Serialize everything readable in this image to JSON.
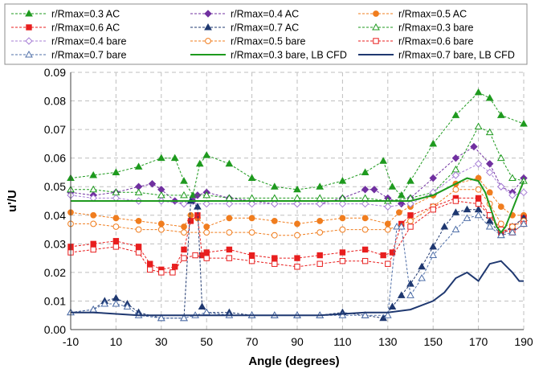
{
  "chart_data": {
    "type": "line",
    "title": "",
    "xlabel": "Angle (degrees)",
    "ylabel": "u'/U",
    "xlim": [
      -10,
      190
    ],
    "ylim": [
      0,
      0.09
    ],
    "xticks": [
      -10,
      10,
      30,
      50,
      70,
      90,
      110,
      130,
      150,
      170,
      190
    ],
    "yticks": [
      0.0,
      0.01,
      0.02,
      0.03,
      0.04,
      0.05,
      0.06,
      0.07,
      0.08,
      0.09
    ],
    "ytick_labels": [
      "0.00",
      "0.01",
      "0.02",
      "0.03",
      "0.04",
      "0.05",
      "0.06",
      "0.07",
      "0.08",
      "0.09"
    ],
    "grid": true,
    "legend_position": "top",
    "series": [
      {
        "name": "r/Rmax=0.3 AC",
        "color": "#1e9a1e",
        "marker": "triangle",
        "filled": true,
        "dashed": true,
        "x": [
          -10,
          0,
          10,
          20,
          30,
          36,
          40,
          44,
          47,
          50,
          60,
          70,
          80,
          90,
          100,
          110,
          120,
          128,
          132,
          136,
          140,
          150,
          160,
          170,
          175,
          180,
          190
        ],
        "y": [
          0.053,
          0.054,
          0.055,
          0.057,
          0.06,
          0.06,
          0.052,
          0.047,
          0.058,
          0.061,
          0.058,
          0.053,
          0.05,
          0.049,
          0.05,
          0.052,
          0.055,
          0.059,
          0.05,
          0.047,
          0.052,
          0.065,
          0.075,
          0.083,
          0.081,
          0.075,
          0.072
        ]
      },
      {
        "name": "r/Rmax=0.4 AC",
        "color": "#7030a0",
        "marker": "diamond",
        "filled": true,
        "dashed": true,
        "x": [
          -10,
          0,
          10,
          20,
          26,
          30,
          36,
          40,
          44,
          46,
          50,
          60,
          70,
          80,
          90,
          100,
          110,
          120,
          124,
          130,
          136,
          140,
          150,
          160,
          168,
          175,
          180,
          185,
          190
        ],
        "y": [
          0.048,
          0.047,
          0.048,
          0.05,
          0.051,
          0.049,
          0.045,
          0.044,
          0.045,
          0.047,
          0.048,
          0.046,
          0.045,
          0.044,
          0.044,
          0.044,
          0.046,
          0.049,
          0.049,
          0.046,
          0.044,
          0.046,
          0.053,
          0.06,
          0.064,
          0.058,
          0.05,
          0.048,
          0.053
        ]
      },
      {
        "name": "r/Rmax=0.5 AC",
        "color": "#f07d1e",
        "marker": "circle",
        "filled": true,
        "dashed": true,
        "x": [
          -10,
          0,
          10,
          20,
          30,
          40,
          43,
          46,
          50,
          60,
          70,
          80,
          90,
          100,
          110,
          120,
          130,
          135,
          140,
          150,
          160,
          170,
          175,
          180,
          185,
          190
        ],
        "y": [
          0.041,
          0.04,
          0.039,
          0.038,
          0.037,
          0.036,
          0.04,
          0.039,
          0.036,
          0.039,
          0.039,
          0.038,
          0.037,
          0.038,
          0.039,
          0.039,
          0.037,
          0.041,
          0.043,
          0.047,
          0.051,
          0.053,
          0.048,
          0.043,
          0.04,
          0.04
        ]
      },
      {
        "name": "r/Rmax=0.6 AC",
        "color": "#e81e1e",
        "marker": "square",
        "filled": true,
        "dashed": true,
        "x": [
          -10,
          0,
          10,
          20,
          25,
          30,
          36,
          40,
          43,
          46,
          48,
          50,
          60,
          70,
          80,
          90,
          100,
          110,
          120,
          128,
          132,
          136,
          140,
          150,
          160,
          170,
          175,
          180,
          185,
          190
        ],
        "y": [
          0.029,
          0.03,
          0.031,
          0.029,
          0.023,
          0.021,
          0.022,
          0.028,
          0.038,
          0.04,
          0.026,
          0.027,
          0.028,
          0.026,
          0.025,
          0.025,
          0.026,
          0.027,
          0.028,
          0.026,
          0.027,
          0.037,
          0.04,
          0.043,
          0.046,
          0.046,
          0.04,
          0.034,
          0.036,
          0.039
        ]
      },
      {
        "name": "r/Rmax=0.7 AC",
        "color": "#1f3870",
        "marker": "triangle",
        "filled": true,
        "dashed": true,
        "x": [
          -10,
          0,
          5,
          10,
          15,
          20,
          30,
          40,
          43,
          46,
          48,
          50,
          60,
          70,
          80,
          90,
          100,
          110,
          120,
          128,
          132,
          136,
          140,
          145,
          150,
          155,
          160,
          165,
          170,
          175,
          180,
          185,
          190
        ],
        "y": [
          0.006,
          0.007,
          0.01,
          0.011,
          0.009,
          0.006,
          0.004,
          0.004,
          0.045,
          0.043,
          0.008,
          0.006,
          0.006,
          0.005,
          0.005,
          0.005,
          0.005,
          0.006,
          0.005,
          0.004,
          0.008,
          0.012,
          0.016,
          0.022,
          0.029,
          0.036,
          0.041,
          0.042,
          0.042,
          0.038,
          0.033,
          0.036,
          0.039
        ]
      },
      {
        "name": "r/Rmax=0.3 bare",
        "color": "#1e9a1e",
        "marker": "triangle",
        "filled": false,
        "dashed": true,
        "x": [
          -10,
          0,
          10,
          20,
          30,
          40,
          50,
          60,
          70,
          80,
          90,
          100,
          110,
          120,
          130,
          140,
          150,
          160,
          170,
          175,
          180,
          185,
          190
        ],
        "y": [
          0.049,
          0.049,
          0.048,
          0.048,
          0.047,
          0.047,
          0.047,
          0.046,
          0.046,
          0.046,
          0.046,
          0.046,
          0.046,
          0.046,
          0.045,
          0.046,
          0.048,
          0.056,
          0.071,
          0.069,
          0.06,
          0.053,
          0.052
        ]
      },
      {
        "name": "r/Rmax=0.4 bare",
        "color": "#a77fd6",
        "marker": "diamond",
        "filled": false,
        "dashed": true,
        "x": [
          -10,
          0,
          10,
          20,
          30,
          40,
          50,
          60,
          70,
          80,
          90,
          100,
          110,
          120,
          130,
          140,
          150,
          160,
          170,
          175,
          180,
          185,
          190
        ],
        "y": [
          0.047,
          0.046,
          0.046,
          0.045,
          0.045,
          0.044,
          0.044,
          0.044,
          0.044,
          0.044,
          0.044,
          0.044,
          0.044,
          0.044,
          0.043,
          0.044,
          0.048,
          0.054,
          0.058,
          0.055,
          0.05,
          0.047,
          0.048
        ]
      },
      {
        "name": "r/Rmax=0.5 bare",
        "color": "#f07d1e",
        "marker": "circle",
        "filled": false,
        "dashed": true,
        "x": [
          -10,
          0,
          10,
          20,
          30,
          40,
          50,
          60,
          70,
          80,
          90,
          100,
          110,
          120,
          130,
          140,
          150,
          160,
          170,
          175,
          180,
          185,
          190
        ],
        "y": [
          0.037,
          0.037,
          0.036,
          0.035,
          0.035,
          0.034,
          0.034,
          0.034,
          0.034,
          0.033,
          0.033,
          0.034,
          0.035,
          0.035,
          0.035,
          0.038,
          0.043,
          0.049,
          0.049,
          0.044,
          0.037,
          0.036,
          0.038
        ]
      },
      {
        "name": "r/Rmax=0.6 bare",
        "color": "#e81e1e",
        "marker": "square",
        "filled": false,
        "dashed": true,
        "x": [
          -10,
          0,
          10,
          20,
          25,
          30,
          35,
          40,
          45,
          50,
          60,
          70,
          80,
          90,
          100,
          110,
          120,
          130,
          140,
          150,
          160,
          170,
          175,
          180,
          185,
          190
        ],
        "y": [
          0.027,
          0.028,
          0.029,
          0.027,
          0.021,
          0.02,
          0.02,
          0.025,
          0.026,
          0.025,
          0.025,
          0.024,
          0.023,
          0.022,
          0.023,
          0.024,
          0.024,
          0.023,
          0.036,
          0.042,
          0.045,
          0.044,
          0.04,
          0.035,
          0.034,
          0.037
        ]
      },
      {
        "name": "r/Rmax=0.7 bare",
        "color": "#4f6fa8",
        "marker": "triangle",
        "filled": false,
        "dashed": true,
        "x": [
          -10,
          0,
          5,
          10,
          15,
          20,
          30,
          40,
          45,
          50,
          60,
          70,
          80,
          90,
          100,
          110,
          120,
          130,
          134,
          136,
          140,
          145,
          150,
          160,
          165,
          170,
          175,
          180,
          185,
          190
        ],
        "y": [
          0.006,
          0.007,
          0.009,
          0.009,
          0.008,
          0.005,
          0.004,
          0.004,
          0.005,
          0.006,
          0.005,
          0.005,
          0.005,
          0.005,
          0.005,
          0.005,
          0.005,
          0.005,
          0.036,
          0.036,
          0.012,
          0.018,
          0.026,
          0.035,
          0.039,
          0.04,
          0.036,
          0.033,
          0.034,
          0.037
        ]
      },
      {
        "name": "r/Rmax=0.3 bare, LB CFD",
        "color": "#1e9a1e",
        "marker": "none",
        "filled": false,
        "dashed": false,
        "x": [
          -10,
          0,
          20,
          40,
          60,
          80,
          100,
          120,
          140,
          150,
          155,
          160,
          165,
          170,
          173,
          176,
          178,
          180,
          182,
          185,
          190
        ],
        "y": [
          0.045,
          0.045,
          0.045,
          0.045,
          0.045,
          0.045,
          0.045,
          0.045,
          0.045,
          0.047,
          0.049,
          0.051,
          0.053,
          0.052,
          0.048,
          0.041,
          0.036,
          0.034,
          0.036,
          0.042,
          0.052
        ]
      },
      {
        "name": "r/Rmax=0.7 bare, LB CFD",
        "color": "#1f3870",
        "marker": "none",
        "filled": false,
        "dashed": false,
        "x": [
          -10,
          0,
          20,
          40,
          60,
          80,
          100,
          120,
          130,
          140,
          150,
          155,
          160,
          165,
          170,
          175,
          180,
          185,
          188,
          190
        ],
        "y": [
          0.006,
          0.006,
          0.005,
          0.005,
          0.005,
          0.005,
          0.005,
          0.006,
          0.006,
          0.007,
          0.01,
          0.013,
          0.018,
          0.02,
          0.017,
          0.023,
          0.024,
          0.02,
          0.017,
          0.017
        ]
      }
    ]
  }
}
